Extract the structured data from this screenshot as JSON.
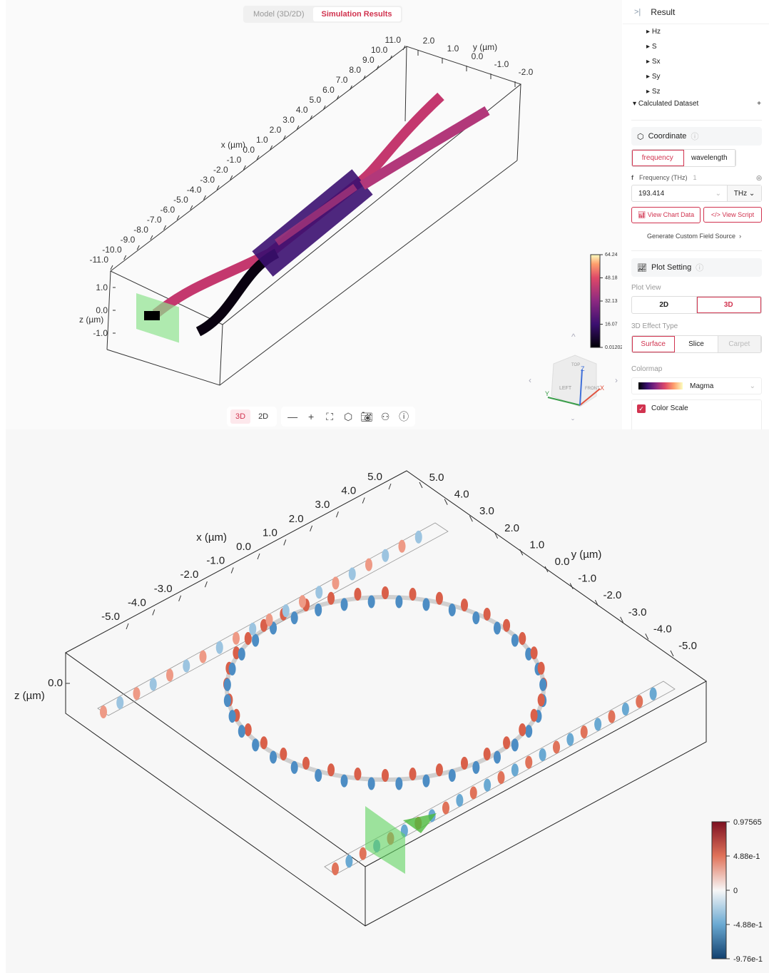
{
  "tabs": [
    {
      "label": "Model (3D/2D)",
      "active": false
    },
    {
      "label": "Simulation Results",
      "active": true
    }
  ],
  "toolbar": {
    "view_3d": "3D",
    "view_2d": "2D",
    "icons": [
      "zoom-out-icon",
      "zoom-in-icon",
      "fit-view-icon",
      "rotate-cube-icon",
      "camera-icon",
      "python-icon",
      "help-icon"
    ]
  },
  "plot_top": {
    "x_label": "x (µm)",
    "y_label": "y (µm)",
    "z_label": "z (µm)",
    "x_ticks": [
      "11.0",
      "10.0",
      "9.0",
      "8.0",
      "7.0",
      "6.0",
      "5.0",
      "4.0",
      "3.0",
      "2.0",
      "1.0",
      "0.0",
      "-1.0",
      "-2.0",
      "-3.0",
      "-4.0",
      "-5.0",
      "-6.0",
      "-7.0",
      "-8.0",
      "-9.0",
      "-10.0",
      "-11.0"
    ],
    "y_ticks": [
      "2.0",
      "1.0",
      "0.0",
      "-1.0",
      "-2.0"
    ],
    "z_ticks": [
      "1.0",
      "0.0",
      "-1.0"
    ],
    "colorbar": {
      "colormap": "magma",
      "ticks": [
        "64.24",
        "48.18",
        "32.13",
        "16.07",
        "0.01202"
      ]
    },
    "view_cube": {
      "left": "LEFT",
      "front": "FRONT",
      "top": "TOP",
      "x": "X",
      "y": "Y",
      "z": "Z"
    }
  },
  "panel": {
    "title": "Result",
    "tree": [
      "Hz",
      "S",
      "Sx",
      "Sy",
      "Sz"
    ],
    "calculated": "Calculated Dataset",
    "coordinate": "Coordinate",
    "coord_options": [
      {
        "label": "frequency",
        "active": true
      },
      {
        "label": "wavelength",
        "active": false
      }
    ],
    "freq_symbol": "f",
    "freq_label": "Frequency (THz)",
    "freq_count": "1",
    "freq_value": "193.414",
    "freq_unit": "THz",
    "view_chart": "View Chart Data",
    "view_script": "View Script",
    "custom_source": "Generate Custom Field Source",
    "plot_setting": "Plot Setting",
    "plot_view_label": "Plot View",
    "plot_view": [
      {
        "label": "2D",
        "active": false
      },
      {
        "label": "3D",
        "active": true
      }
    ],
    "effect_label": "3D Effect Type",
    "effects": [
      {
        "label": "Surface",
        "active": true
      },
      {
        "label": "Slice",
        "active": false
      },
      {
        "label": "Carpet",
        "active": false,
        "disabled": true
      }
    ],
    "colormap_label": "Colormap",
    "colormap": "Magma",
    "color_scale": "Color Scale",
    "color_scale_checked": true,
    "accent": "#d1334f"
  },
  "plot_bottom": {
    "x_label": "x (µm)",
    "y_label": "y (µm)",
    "z_label": "z (µm)",
    "x_ticks": [
      "5.0",
      "4.0",
      "3.0",
      "2.0",
      "1.0",
      "0.0",
      "-1.0",
      "-2.0",
      "-3.0",
      "-4.0",
      "-5.0"
    ],
    "y_ticks": [
      "5.0",
      "4.0",
      "3.0",
      "2.0",
      "1.0",
      "0.0",
      "-1.0",
      "-2.0",
      "-3.0",
      "-4.0",
      "-5.0"
    ],
    "z_ticks": [
      "0.0"
    ],
    "colorbar": {
      "colormap": "RdBu",
      "ticks": [
        "0.97565",
        "4.88e-1",
        "0",
        "-4.88e-1",
        "-9.76e-1"
      ]
    }
  }
}
